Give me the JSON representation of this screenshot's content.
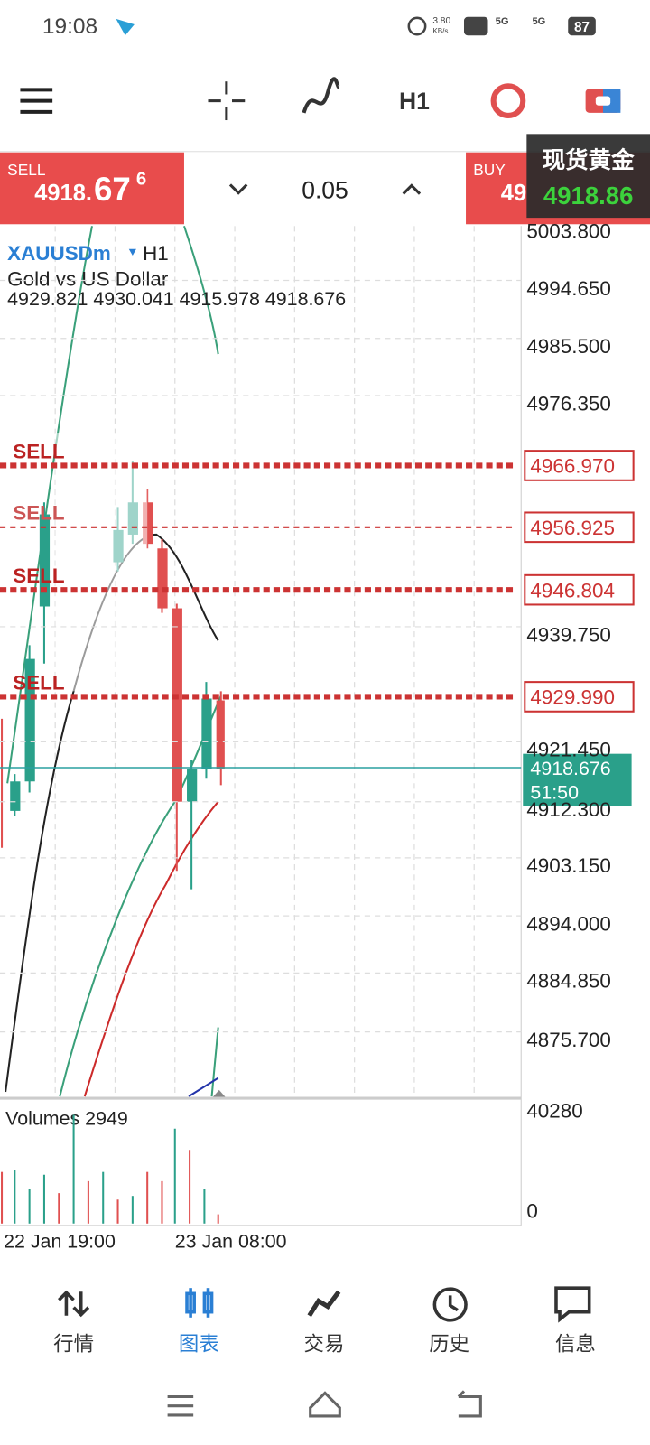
{
  "status_bar": {
    "time": "19:08",
    "speed": "3.80",
    "speed_unit": "KB/s",
    "network_1": "5G",
    "network_2": "5G",
    "battery": "87"
  },
  "toolbar": {
    "timeframe": "H1"
  },
  "trade_panel": {
    "sell_label": "SELL",
    "sell_price_main": "4918.",
    "sell_price_big": "67",
    "sell_price_sup": "6",
    "volume": "0.05",
    "buy_label": "BUY",
    "buy_price_partial": "49"
  },
  "overlay": {
    "title": "现货黄金",
    "price": "4918.86"
  },
  "chart": {
    "symbol": "XAUUSDm",
    "timeframe": "H1",
    "description": "Gold vs US Dollar",
    "ohlc": "4929.821 4930.041 4915.978 4918.676",
    "price_axis": [
      "5003.800",
      "4994.650",
      "4985.500",
      "4976.350",
      "4939.750",
      "4921.450",
      "4912.300",
      "4903.150",
      "4894.000",
      "4884.850",
      "4875.700"
    ],
    "order_lines": [
      {
        "label": "SELL",
        "price": "4966.970"
      },
      {
        "label": "SELL",
        "price": "4956.925"
      },
      {
        "label": "SELL",
        "price": "4946.804"
      },
      {
        "label": "SELL",
        "price": "4929.990"
      }
    ],
    "current_price": "4918.676",
    "countdown": "51:50",
    "volumes_label": "Volumes 2949",
    "volume_axis": [
      "40280",
      "0"
    ],
    "time_axis": [
      "22 Jan 19:00",
      "23 Jan 08:00"
    ]
  },
  "bottom_nav": [
    "行情",
    "图表",
    "交易",
    "历史",
    "信息"
  ]
}
